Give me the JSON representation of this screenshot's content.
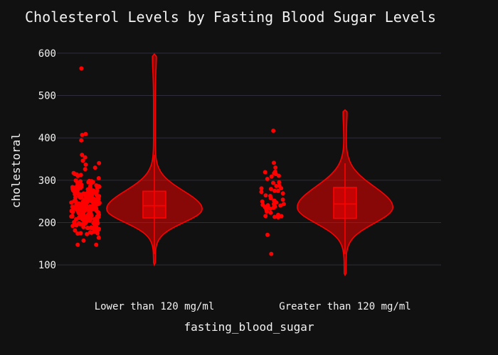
{
  "chart_data": {
    "type": "violin",
    "title": "Cholesterol Levels by Fasting Blood Sugar Levels",
    "xlabel": "fasting_blood_sugar",
    "ylabel": "cholestoral",
    "categories": [
      "Lower than 120 mg/ml",
      "Greater than 120 mg/ml"
    ],
    "ylim": [
      55,
      625
    ],
    "yticks": [
      100,
      200,
      300,
      400,
      500,
      600
    ],
    "grid": true,
    "color": "#ff0000",
    "violins": [
      {
        "category": "Lower than 120 mg/ml",
        "min": 100,
        "max": 598,
        "q1": 211,
        "median": 240,
        "q3": 274,
        "lower_fence": 126,
        "upper_fence": 360,
        "mode": 232,
        "outliers": [
          564,
          409,
          407,
          394,
          360,
          354,
          346
        ]
      },
      {
        "category": "Greater than 120 mg/ml",
        "min": 76,
        "max": 466,
        "q1": 210,
        "median": 244,
        "q3": 283,
        "lower_fence": 126,
        "upper_fence": 340,
        "mode": 236,
        "outliers": [
          417,
          341,
          330,
          320,
          126
        ]
      }
    ]
  }
}
